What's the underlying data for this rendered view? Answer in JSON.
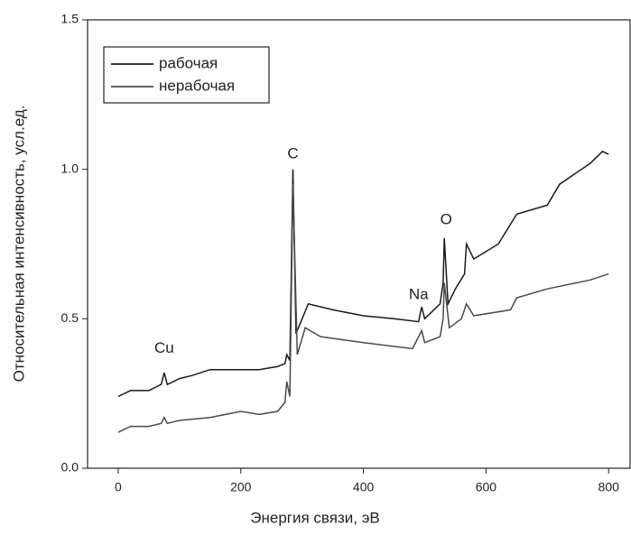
{
  "chart_data": {
    "type": "line",
    "xlabel": "Энергия связи, эВ",
    "ylabel": "Относительная интенсивность, усл.ед.",
    "xlim": [
      -50,
      835
    ],
    "ylim": [
      0,
      1.5
    ],
    "xticks": [
      0,
      200,
      400,
      600,
      800
    ],
    "yticks": [
      {
        "value": 0,
        "label": "0.0"
      },
      0.5,
      {
        "value": 1,
        "label": "1.0"
      },
      1.5
    ],
    "legend": "upper left",
    "series": [
      {
        "name": "рабочая",
        "color": "#1a1a1a",
        "x": [
          0,
          20,
          50,
          70,
          75,
          80,
          100,
          120,
          150,
          200,
          230,
          260,
          272,
          275,
          280,
          285,
          290,
          300,
          310,
          350,
          400,
          450,
          490,
          495,
          500,
          525,
          530,
          532,
          538,
          550,
          565,
          568,
          580,
          620,
          650,
          700,
          720,
          770,
          790,
          800
        ],
        "values": [
          0.24,
          0.26,
          0.26,
          0.28,
          0.32,
          0.28,
          0.3,
          0.31,
          0.33,
          0.33,
          0.33,
          0.34,
          0.35,
          0.38,
          0.36,
          1.0,
          0.45,
          0.5,
          0.55,
          0.53,
          0.51,
          0.5,
          0.49,
          0.54,
          0.5,
          0.55,
          0.62,
          0.77,
          0.55,
          0.6,
          0.65,
          0.75,
          0.7,
          0.75,
          0.85,
          0.88,
          0.95,
          1.02,
          1.06,
          1.05
        ]
      },
      {
        "name": "нерабочая",
        "color": "#4a4a4a",
        "x": [
          0,
          20,
          50,
          70,
          75,
          80,
          100,
          150,
          200,
          230,
          260,
          272,
          275,
          280,
          285,
          292,
          305,
          330,
          400,
          480,
          495,
          500,
          525,
          530,
          532,
          540,
          560,
          568,
          580,
          640,
          650,
          700,
          770,
          800
        ],
        "values": [
          0.12,
          0.14,
          0.14,
          0.15,
          0.17,
          0.15,
          0.16,
          0.17,
          0.19,
          0.18,
          0.19,
          0.22,
          0.29,
          0.24,
          0.95,
          0.38,
          0.47,
          0.44,
          0.42,
          0.4,
          0.46,
          0.42,
          0.44,
          0.5,
          0.62,
          0.47,
          0.5,
          0.55,
          0.51,
          0.53,
          0.57,
          0.6,
          0.63,
          0.65
        ]
      }
    ],
    "annotations": [
      {
        "text": "Cu",
        "x": 75,
        "y": 0.4
      },
      {
        "text": "C",
        "x": 285,
        "y": 1.05
      },
      {
        "text": "Na",
        "x": 490,
        "y": 0.58
      },
      {
        "text": "O",
        "x": 535,
        "y": 0.83
      }
    ]
  }
}
